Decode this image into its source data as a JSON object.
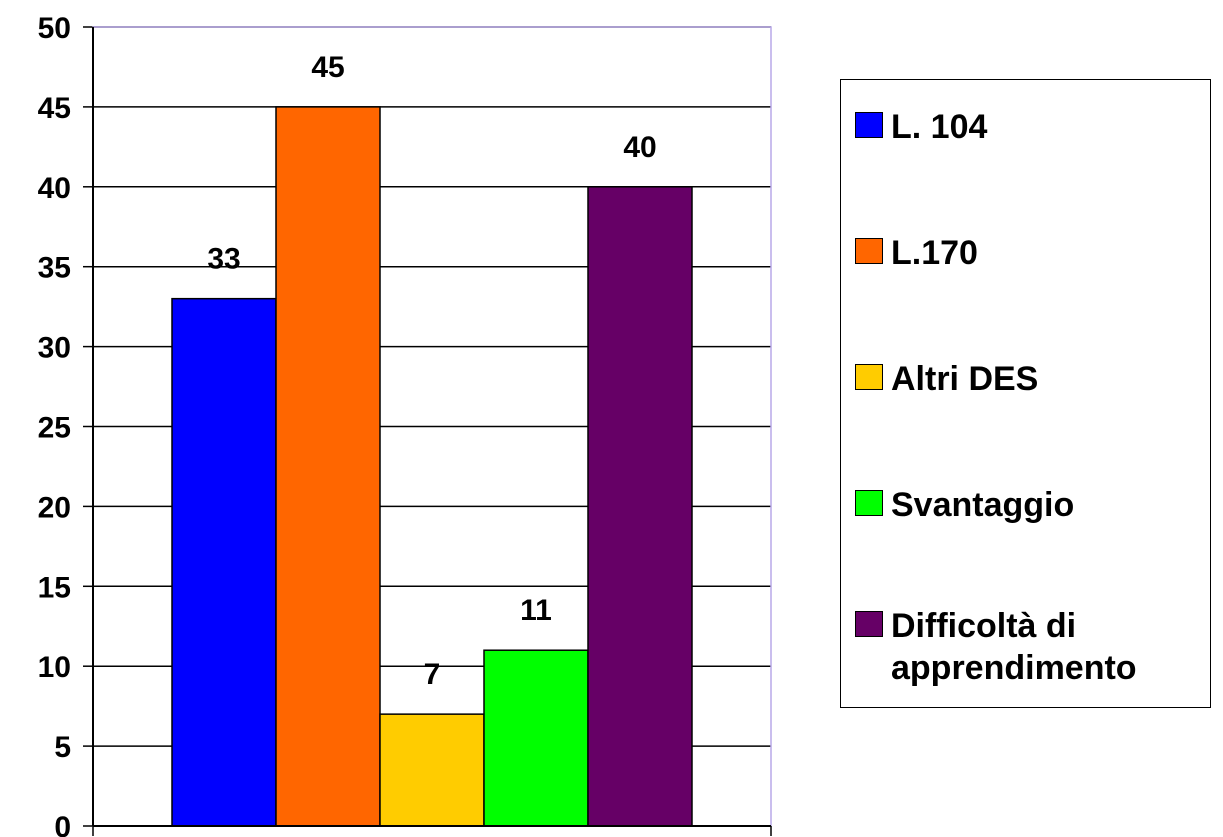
{
  "chart_data": {
    "type": "bar",
    "categories": [
      "L. 104",
      "L.170",
      "Altri DES",
      "Svantaggio",
      "Difficoltà di apprendimento"
    ],
    "series": [
      {
        "name": "L. 104",
        "value": 33,
        "color": "#0000FF"
      },
      {
        "name": "L.170",
        "value": 45,
        "color": "#FF6600"
      },
      {
        "name": "Altri DES",
        "value": 7,
        "color": "#FFCC00"
      },
      {
        "name": "Svantaggio",
        "value": 11,
        "color": "#00FF00"
      },
      {
        "name": "Difficoltà di apprendimento",
        "value": 40,
        "color": "#660066"
      }
    ],
    "ylim": [
      0,
      50
    ],
    "yticks": [
      "0",
      "5",
      "10",
      "15",
      "20",
      "25",
      "30",
      "35",
      "40",
      "45",
      "50"
    ],
    "grid": true,
    "legend_position": "right"
  }
}
